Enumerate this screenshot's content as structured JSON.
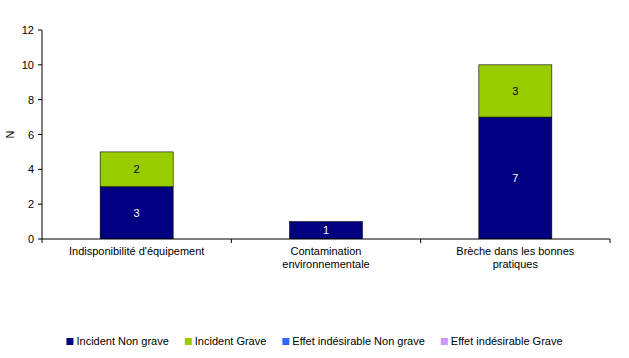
{
  "chart_data": {
    "type": "bar",
    "stacked": true,
    "data_labels": true,
    "grid": false,
    "legend": "bottom",
    "y_label": "N",
    "categories": [
      "Indisponibilité d'équipement",
      "Contamination environnementale",
      "Brèche dans les bonnes pratiques"
    ],
    "ylim": [
      0,
      12
    ],
    "yticks": [
      0,
      2,
      4,
      6,
      8,
      10,
      12
    ],
    "series": [
      {
        "name": "Incident Non grave",
        "color": "#000080",
        "values": [
          3,
          1,
          7
        ]
      },
      {
        "name": "Incident Grave",
        "color": "#99cc00",
        "values": [
          2,
          0,
          3
        ]
      },
      {
        "name": "Effet indésirable Non grave",
        "color": "#3366ff",
        "values": [
          0,
          0,
          0
        ]
      },
      {
        "name": "Effet indésirable Grave",
        "color": "#cc99ff",
        "values": [
          0,
          0,
          0
        ]
      }
    ]
  }
}
